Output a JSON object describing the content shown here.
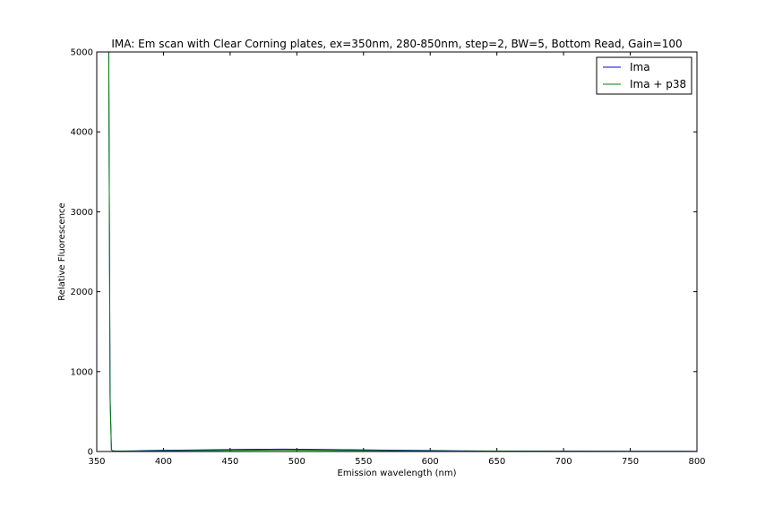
{
  "chart_data": {
    "type": "line",
    "title": "IMA: Em scan with Clear Corning plates, ex=350nm, 280-850nm, step=2, BW=5, Bottom Read, Gain=100",
    "xlabel": "Emission wavelength (nm)",
    "ylabel": "Relative Fluorescence",
    "xlim": [
      350,
      800
    ],
    "ylim": [
      0,
      5000
    ],
    "xticks": [
      350,
      400,
      450,
      500,
      550,
      600,
      650,
      700,
      750,
      800
    ],
    "yticks": [
      0,
      1000,
      2000,
      3000,
      4000,
      5000
    ],
    "grid": false,
    "legend_position": "top-right",
    "series": [
      {
        "name": "Ima",
        "color": "#0000ff",
        "x": [
          358,
          359,
          360,
          361,
          362,
          365,
          370,
          380,
          390,
          400,
          420,
          440,
          460,
          480,
          490,
          500,
          520,
          540,
          560,
          580,
          600,
          620,
          650,
          700,
          750,
          800
        ],
        "y": [
          5000,
          5000,
          700,
          20,
          8,
          6,
          5,
          8,
          12,
          15,
          18,
          22,
          26,
          28,
          30,
          28,
          25,
          22,
          18,
          15,
          12,
          9,
          6,
          4,
          3,
          2
        ]
      },
      {
        "name": "Ima + p38",
        "color": "#008000",
        "x": [
          358,
          359,
          360,
          361,
          362,
          365,
          370,
          380,
          390,
          400,
          420,
          440,
          460,
          480,
          490,
          500,
          520,
          540,
          560,
          580,
          600,
          620,
          650,
          700,
          750,
          800
        ],
        "y": [
          5000,
          5000,
          650,
          20,
          8,
          5,
          4,
          6,
          8,
          10,
          12,
          14,
          16,
          18,
          19,
          18,
          16,
          14,
          12,
          10,
          8,
          6,
          5,
          3,
          2,
          2
        ]
      }
    ]
  }
}
